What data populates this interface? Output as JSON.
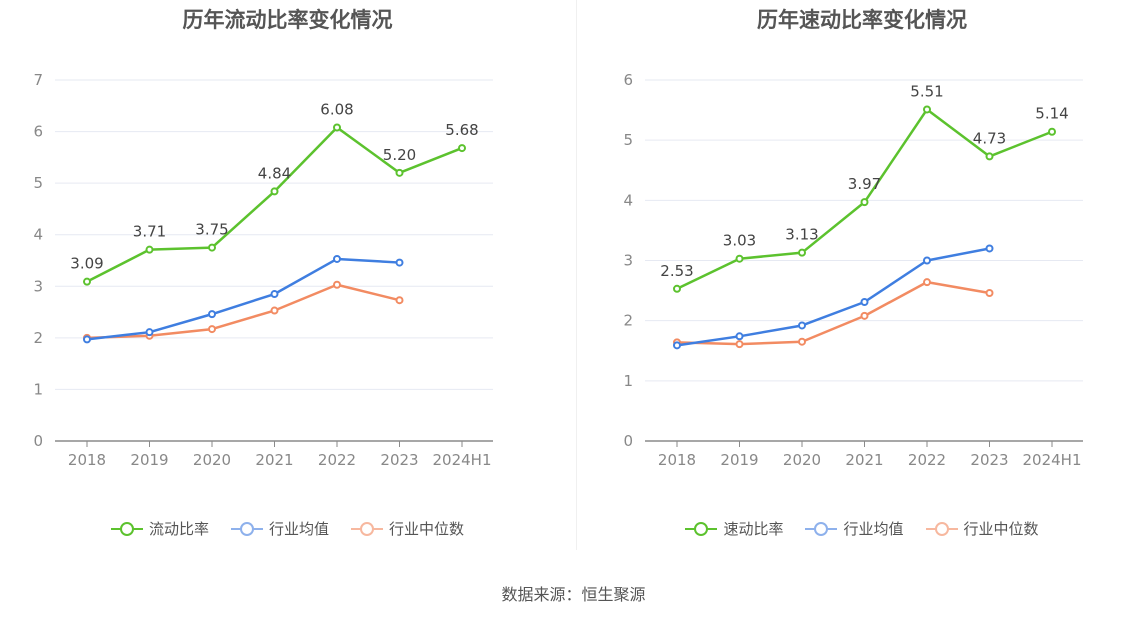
{
  "source": "数据来源：恒生聚源",
  "colors": {
    "main": "#5cc22e",
    "avg": "#3f7ee0",
    "median": "#f28b62",
    "grid": "#e6e9f2",
    "axis": "#888888"
  },
  "chart_data": [
    {
      "type": "line",
      "title": "历年流动比率变化情况",
      "categories": [
        "2018",
        "2019",
        "2020",
        "2021",
        "2022",
        "2023",
        "2024H1"
      ],
      "ylim": [
        0,
        7
      ],
      "yticks": [
        0,
        1,
        2,
        3,
        4,
        5,
        6,
        7
      ],
      "grid": true,
      "legend_position": "bottom",
      "series": [
        {
          "name": "流动比率",
          "values": [
            3.09,
            3.71,
            3.75,
            4.84,
            6.08,
            5.2,
            5.68
          ],
          "labels": [
            "3.09",
            "3.71",
            "3.75",
            "4.84",
            "6.08",
            "5.20",
            "5.68"
          ],
          "color": "#5cc22e"
        },
        {
          "name": "行业均值",
          "values": [
            1.97,
            2.11,
            2.46,
            2.85,
            3.53,
            3.46,
            null
          ],
          "color": "#3f7ee0"
        },
        {
          "name": "行业中位数",
          "values": [
            2.0,
            2.04,
            2.17,
            2.53,
            3.03,
            2.73,
            null
          ],
          "color": "#f28b62"
        }
      ]
    },
    {
      "type": "line",
      "title": "历年速动比率变化情况",
      "categories": [
        "2018",
        "2019",
        "2020",
        "2021",
        "2022",
        "2023",
        "2024H1"
      ],
      "ylim": [
        0,
        6
      ],
      "yticks": [
        0,
        1,
        2,
        3,
        4,
        5,
        6
      ],
      "grid": true,
      "legend_position": "bottom",
      "series": [
        {
          "name": "速动比率",
          "values": [
            2.53,
            3.03,
            3.13,
            3.97,
            5.51,
            4.73,
            5.14
          ],
          "labels": [
            "2.53",
            "3.03",
            "3.13",
            "3.97",
            "5.51",
            "4.73",
            "5.14"
          ],
          "color": "#5cc22e"
        },
        {
          "name": "行业均值",
          "values": [
            1.59,
            1.74,
            1.92,
            2.31,
            3.0,
            3.2,
            null
          ],
          "color": "#3f7ee0"
        },
        {
          "name": "行业中位数",
          "values": [
            1.64,
            1.61,
            1.65,
            2.08,
            2.64,
            2.46,
            null
          ],
          "color": "#f28b62"
        }
      ]
    }
  ]
}
